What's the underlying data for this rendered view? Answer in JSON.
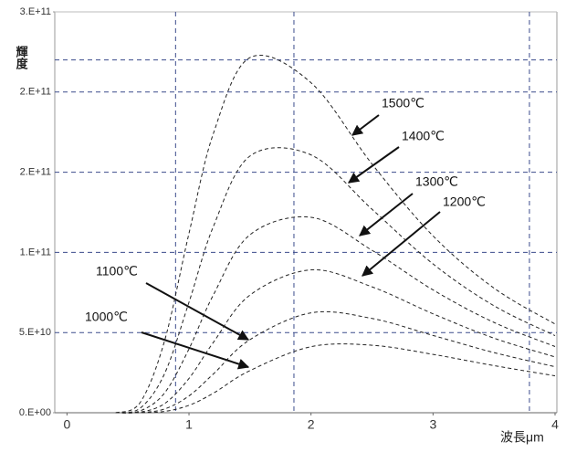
{
  "chart_data": {
    "type": "line",
    "y_label": "輝度",
    "x_label": "波長μm",
    "x": [
      0.4,
      0.6,
      0.8,
      1.0,
      1.2,
      1.5,
      2.0,
      2.5,
      3.0,
      3.5,
      4.0
    ],
    "series": [
      {
        "name": "1000℃",
        "color": "#222222",
        "values": [
          0,
          32000000.0,
          830000000.0,
          4620000000.0,
          12200000000.0,
          26300000000.0,
          41200000000.0,
          42100000000.0,
          36400000000.0,
          29400000000.0,
          23000000000.0
        ]
      },
      {
        "name": "1100℃",
        "color": "#222222",
        "values": [
          0,
          125000000.0,
          2340000000.0,
          10500000000.0,
          24200000000.0,
          45600000000.0,
          62300000000.0,
          58800000000.0,
          48200000000.0,
          37500000000.0,
          28700000000.0
        ]
      },
      {
        "name": "1200℃",
        "color": "#222222",
        "values": [
          0,
          410000000.0,
          5700000000.0,
          21400000000.0,
          43900000000.0,
          73400000000.0,
          89100000000.0,
          78500000000.0,
          61700000000.0,
          46500000000.0,
          34800000000.0
        ]
      },
      {
        "name": "1300℃",
        "color": "#222222",
        "values": [
          0,
          1150000000.0,
          12350000000.0,
          39800000000.0,
          73500000000.0,
          111000000000.0,
          121900000000.0,
          101300000000.0,
          76600000000.0,
          56300000000.0,
          41300000000.0
        ]
      },
      {
        "name": "1400℃",
        "color": "#222222",
        "values": [
          0,
          2860000000.0,
          24400000000.0,
          68900000000.0,
          116200000000.0,
          160100000000.0,
          160800000000.0,
          126900000000.0,
          92800000000.0,
          66700000000.0,
          48100000000.0
        ]
      },
      {
        "name": "1500℃",
        "color": "#222222",
        "values": [
          0,
          6420000000.0,
          44900000000.0,
          111900000000.0,
          174200000000.0,
          221500000000.0,
          205800000000.0,
          155100000000.0,
          110300000000.0,
          77700000000.0,
          55300000000.0
        ]
      }
    ],
    "xlim": [
      -0.1,
      4.0
    ],
    "xticks": [
      0,
      1,
      2,
      3,
      4
    ],
    "ylim": [
      0,
      250000000000
    ],
    "yticks": [
      {
        "value": 0,
        "label": "0.E+00"
      },
      {
        "value": 50000000000,
        "label": "5.E+10"
      },
      {
        "value": 100000000000,
        "label": "1.E+11"
      },
      {
        "value": 150000000000,
        "label": "2.E+11"
      },
      {
        "value": 200000000000,
        "label": "2.E+11"
      },
      {
        "value": 250000000000,
        "label": "3.E+11"
      }
    ],
    "grid": true,
    "grid_color": "#3b4b8c",
    "reference_lines": {
      "x": [
        0.89,
        1.86,
        3.79
      ],
      "y": [
        220000000000
      ]
    }
  }
}
